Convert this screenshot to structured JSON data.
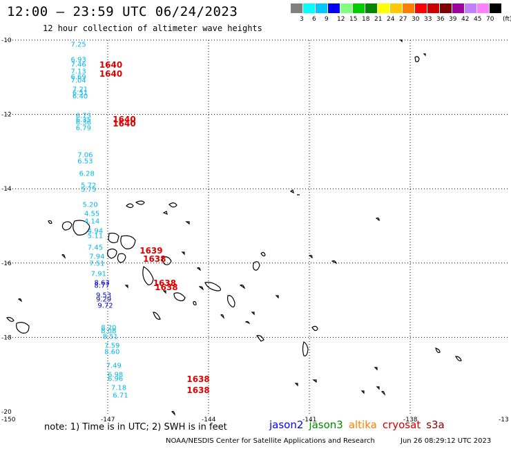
{
  "title": "12:00 – 23:59 UTC 06/24/2023",
  "subtitle": "12 hour collection of altimeter wave heights",
  "colorbar": {
    "unit": "(ft)",
    "colors": [
      "#808080",
      "#00ffff",
      "#00c8ff",
      "#0000ff",
      "#80ff80",
      "#00cc00",
      "#008800",
      "#ffff00",
      "#ffc800",
      "#ff8000",
      "#ff0000",
      "#cc0000",
      "#800000",
      "#a000a0",
      "#c080ff",
      "#ff80ff",
      "#000000"
    ],
    "labels": [
      "3",
      "6",
      "9",
      "12",
      "15",
      "18",
      "21",
      "24",
      "27",
      "30",
      "33",
      "36",
      "39",
      "42",
      "45",
      "70"
    ]
  },
  "axes": {
    "lat_labels": [
      "-10",
      "-12",
      "-14",
      "-16",
      "-18",
      "-20"
    ],
    "lon_labels": [
      "-150",
      "-147",
      "-144",
      "-141",
      "-138",
      "-13"
    ]
  },
  "observations_cyan": [
    {
      "value": "7.25",
      "lon": -148.1,
      "lat": -10.13
    },
    {
      "value": "6.93",
      "lon": -148.1,
      "lat": -10.53
    },
    {
      "value": "7.46",
      "lon": -148.1,
      "lat": -10.66
    },
    {
      "value": "7.13",
      "lon": -148.1,
      "lat": -10.86
    },
    {
      "value": "6.69",
      "lon": -148.1,
      "lat": -11.0
    },
    {
      "value": "7.04",
      "lon": -148.1,
      "lat": -11.1
    },
    {
      "value": "7.21",
      "lon": -148.05,
      "lat": -11.33
    },
    {
      "value": "6.51",
      "lon": -148.05,
      "lat": -11.43
    },
    {
      "value": "6.40",
      "lon": -148.05,
      "lat": -11.53
    },
    {
      "value": "6.73",
      "lon": -147.95,
      "lat": -12.05
    },
    {
      "value": "6.35",
      "lon": -147.95,
      "lat": -12.15
    },
    {
      "value": "6.36",
      "lon": -147.95,
      "lat": -12.23
    },
    {
      "value": "6.79",
      "lon": -147.95,
      "lat": -12.38
    },
    {
      "value": "7.06",
      "lon": -147.9,
      "lat": -13.1
    },
    {
      "value": "6.53",
      "lon": -147.9,
      "lat": -13.28
    },
    {
      "value": "6.28",
      "lon": -147.85,
      "lat": -13.6
    },
    {
      "value": "5.72",
      "lon": -147.8,
      "lat": -13.92
    },
    {
      "value": "5.75",
      "lon": -147.8,
      "lat": -14.03
    },
    {
      "value": "5.20",
      "lon": -147.75,
      "lat": -14.45
    },
    {
      "value": "4.55",
      "lon": -147.7,
      "lat": -14.68
    },
    {
      "value": "4.14",
      "lon": -147.7,
      "lat": -14.88
    },
    {
      "value": "4.94",
      "lon": -147.6,
      "lat": -15.15
    },
    {
      "value": "5.11",
      "lon": -147.6,
      "lat": -15.27
    },
    {
      "value": "7.45",
      "lon": -147.6,
      "lat": -15.6
    },
    {
      "value": "7.94",
      "lon": -147.55,
      "lat": -15.83
    },
    {
      "value": "7.51",
      "lon": -147.55,
      "lat": -16.03
    },
    {
      "value": "7.91",
      "lon": -147.5,
      "lat": -16.3
    },
    {
      "value": "8.20",
      "lon": -147.2,
      "lat": -17.75
    },
    {
      "value": "8.08",
      "lon": -147.2,
      "lat": -17.85
    },
    {
      "value": "8.51",
      "lon": -147.15,
      "lat": -18.0
    },
    {
      "value": "7.59",
      "lon": -147.1,
      "lat": -18.23
    },
    {
      "value": "8.60",
      "lon": -147.1,
      "lat": -18.4
    },
    {
      "value": "7.49",
      "lon": -147.05,
      "lat": -18.78
    },
    {
      "value": "6.98",
      "lon": -147.0,
      "lat": -19.02
    },
    {
      "value": "6.96",
      "lon": -147.0,
      "lat": -19.12
    },
    {
      "value": "7.18",
      "lon": -146.9,
      "lat": -19.36
    },
    {
      "value": "6.71",
      "lon": -146.85,
      "lat": -19.58
    }
  ],
  "observations_blue": [
    {
      "value": "8.63",
      "lon": -147.4,
      "lat": -16.55
    },
    {
      "value": "8.77",
      "lon": -147.4,
      "lat": -16.62
    },
    {
      "value": "9.53",
      "lon": -147.35,
      "lat": -16.88
    },
    {
      "value": "9.29",
      "lon": -147.35,
      "lat": -16.98
    },
    {
      "value": "9.72",
      "lon": -147.3,
      "lat": -17.15
    }
  ],
  "pass_times": [
    {
      "value": "1640",
      "lon": -147.25,
      "lat": -10.66
    },
    {
      "value": "1640",
      "lon": -147.25,
      "lat": -10.92
    },
    {
      "value": "1640",
      "lon": -146.85,
      "lat": -12.13
    },
    {
      "value": "1640",
      "lon": -146.85,
      "lat": -12.25
    },
    {
      "value": "1639",
      "lon": -146.05,
      "lat": -15.67
    },
    {
      "value": "1638",
      "lon": -145.95,
      "lat": -15.9
    },
    {
      "value": "1638",
      "lon": -145.65,
      "lat": -16.55
    },
    {
      "value": "1638",
      "lon": -145.6,
      "lat": -16.65
    },
    {
      "value": "1638",
      "lon": -144.65,
      "lat": -19.12
    },
    {
      "value": "1638",
      "lon": -144.65,
      "lat": -19.42
    }
  ],
  "note": "note:  1) Time is in UTC;  2) SWH is in feet",
  "legend": [
    {
      "label": "jason2",
      "color": "#0000ff"
    },
    {
      "label": "jason3",
      "color": "#008800"
    },
    {
      "label": "altika",
      "color": "#ff8000"
    },
    {
      "label": "cryosat",
      "color": "#cc0000"
    },
    {
      "label": "s3a",
      "color": "#800000"
    }
  ],
  "footer": "NOAA/NESDIS Center for Satellite Applications and Research",
  "footer_timestamp": "Jun 26 08:29:12 UTC 2023",
  "colors": {
    "cyan_obs": "#00b8e8",
    "blue_obs": "#0000cc",
    "time_red": "#e00000"
  }
}
